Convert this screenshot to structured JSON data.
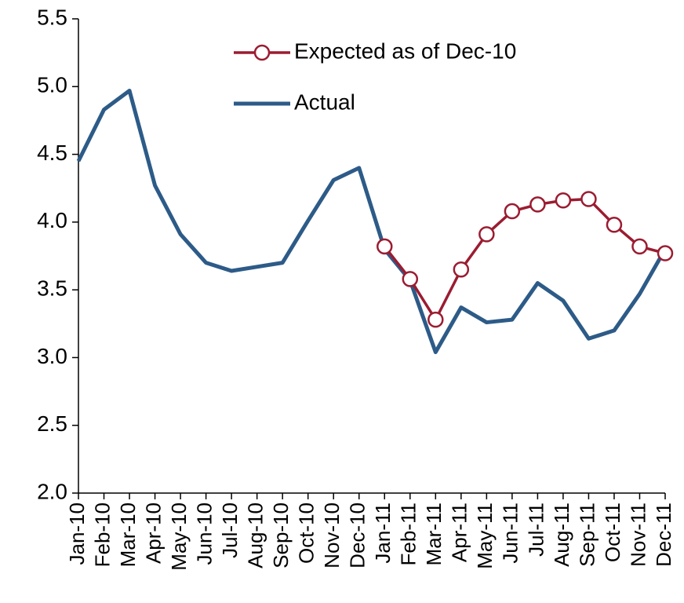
{
  "chart_data": {
    "type": "line",
    "categories": [
      "Jan-10",
      "Feb-10",
      "Mar-10",
      "Apr-10",
      "May-10",
      "Jun-10",
      "Jul-10",
      "Aug-10",
      "Sep-10",
      "Oct-10",
      "Nov-10",
      "Dec-10",
      "Jan-11",
      "Feb-11",
      "Mar-11",
      "Apr-11",
      "May-11",
      "Jun-11",
      "Jul-11",
      "Aug-11",
      "Sep-11",
      "Oct-11",
      "Nov-11",
      "Dec-11"
    ],
    "series": [
      {
        "name": "Expected as of Dec-10",
        "color": "#9b1c31",
        "marker": "circle",
        "values": [
          null,
          null,
          null,
          null,
          null,
          null,
          null,
          null,
          null,
          null,
          null,
          null,
          3.82,
          3.58,
          3.28,
          3.65,
          3.91,
          4.08,
          4.13,
          4.16,
          4.17,
          3.98,
          3.82,
          3.77
        ]
      },
      {
        "name": "Actual",
        "color": "#2d5b88",
        "values": [
          4.45,
          4.83,
          4.97,
          4.27,
          3.91,
          3.7,
          3.64,
          3.67,
          3.7,
          4.01,
          4.31,
          4.4,
          3.8,
          3.57,
          3.04,
          3.37,
          3.26,
          3.28,
          3.55,
          3.42,
          3.14,
          3.2,
          3.47,
          3.8
        ]
      }
    ],
    "ylim": [
      2.0,
      5.5
    ],
    "yticks": [
      {
        "value": 2.0,
        "label": "2.0"
      },
      2.5,
      {
        "value": 3.0,
        "label": "3.0"
      },
      3.5,
      {
        "value": 4.0,
        "label": "4.0"
      },
      4.5,
      {
        "value": 5.0,
        "label": "5.0"
      },
      5.5
    ],
    "grid": false
  }
}
